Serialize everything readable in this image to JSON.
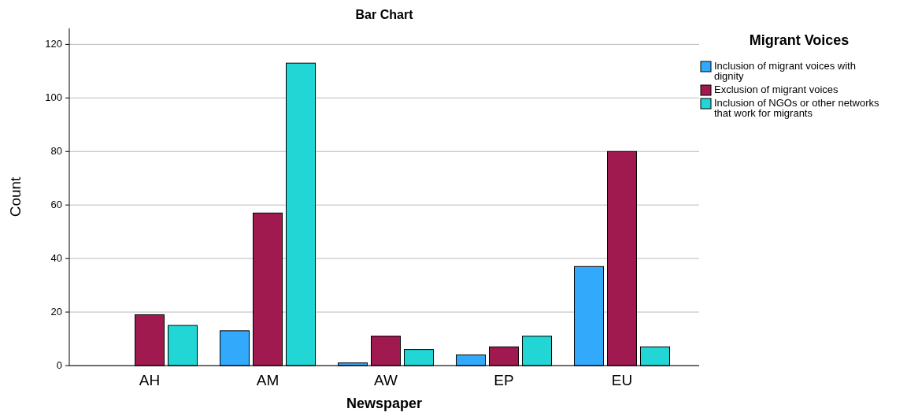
{
  "chart_data": {
    "type": "bar",
    "title": "Bar Chart",
    "xlabel": "Newspaper",
    "ylabel": "Count",
    "legend_title": "Migrant Voices",
    "categories": [
      "AH",
      "AM",
      "AW",
      "EP",
      "EU"
    ],
    "series": [
      {
        "name": "Inclusion of migrant voices with dignity",
        "color": "#33a9fc",
        "values": [
          0,
          13,
          1,
          4,
          37
        ]
      },
      {
        "name": "Exclusion of migrant voices",
        "color": "#a0194f",
        "values": [
          19,
          57,
          11,
          7,
          80
        ]
      },
      {
        "name": "Inclusion of NGOs or other networks that work for migrants",
        "color": "#22d6d6",
        "values": [
          15,
          113,
          6,
          11,
          7
        ]
      }
    ],
    "ylim": [
      0,
      126
    ],
    "yticks": [
      0,
      20,
      40,
      60,
      80,
      100,
      120
    ],
    "grid": "y",
    "legend": "top right"
  }
}
